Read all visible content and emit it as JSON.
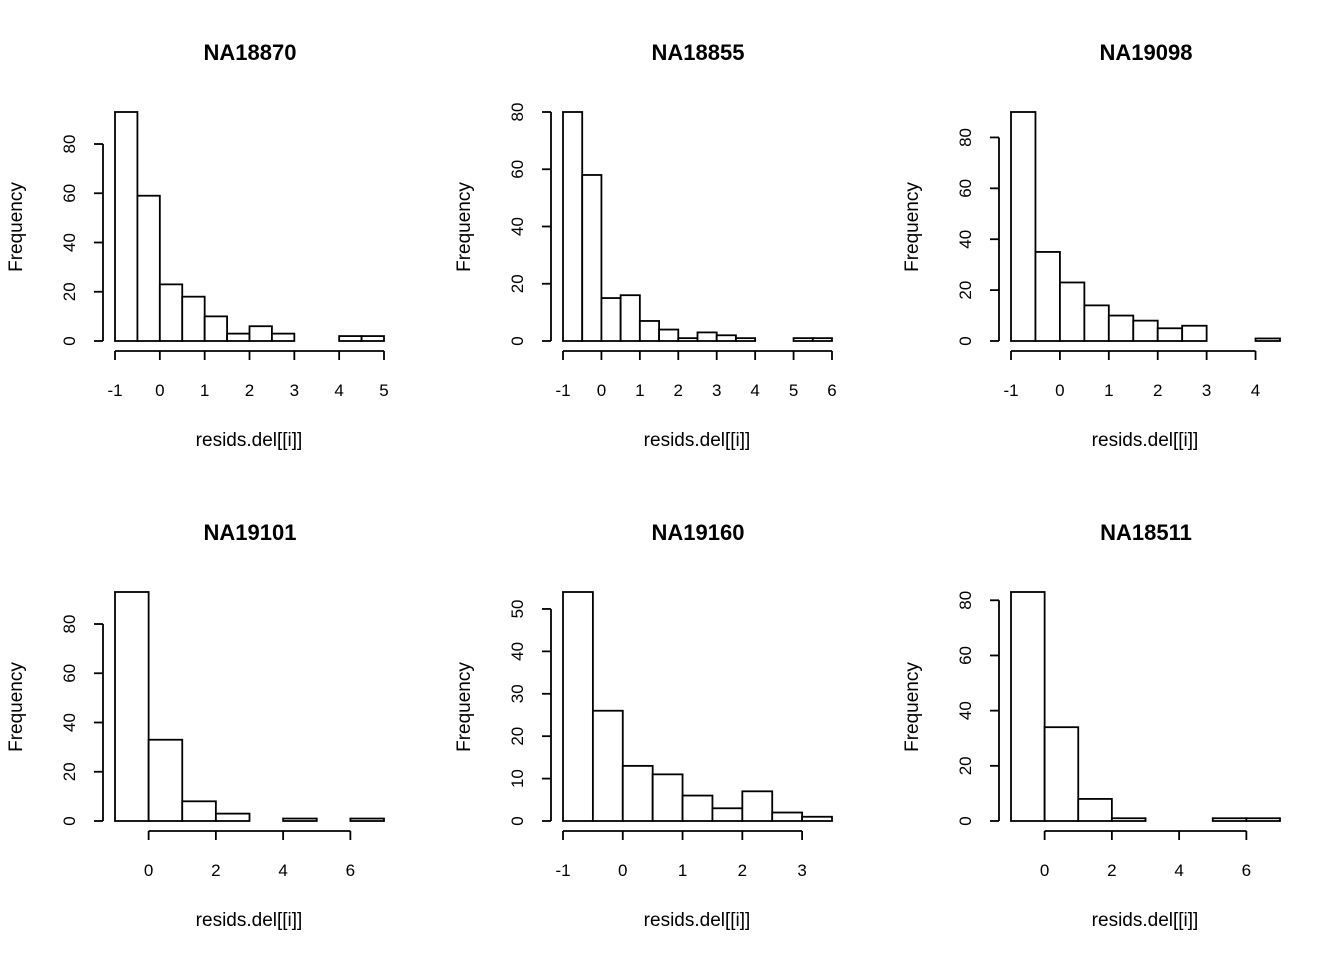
{
  "chart_data": [
    {
      "type": "bar",
      "title": "NA18870",
      "xlabel": "resids.del[[i]]",
      "ylabel": "Frequency",
      "bin_edges": [
        -1,
        -0.5,
        0,
        0.5,
        1,
        1.5,
        2,
        2.5,
        3,
        3.5,
        4,
        4.5,
        5
      ],
      "values": [
        93,
        59,
        23,
        18,
        10,
        3,
        6,
        3,
        0,
        0,
        2,
        2
      ],
      "xticks": [
        -1,
        0,
        1,
        2,
        3,
        4,
        5
      ],
      "xtick_labels": [
        "-1",
        "0",
        "1",
        "2",
        "3",
        "4",
        "5"
      ],
      "yticks": [
        0,
        20,
        40,
        60,
        80
      ],
      "ytick_labels": [
        "0",
        "20",
        "40",
        "60",
        "80"
      ],
      "ymax": 93
    },
    {
      "type": "bar",
      "title": "NA18855",
      "xlabel": "resids.del[[i]]",
      "ylabel": "Frequency",
      "bin_edges": [
        -1,
        -0.5,
        0,
        0.5,
        1,
        1.5,
        2,
        2.5,
        3,
        3.5,
        4,
        4.5,
        5,
        5.5,
        6
      ],
      "values": [
        80,
        58,
        15,
        16,
        7,
        4,
        1,
        3,
        2,
        1,
        0,
        0,
        1,
        1
      ],
      "xticks": [
        -1,
        0,
        1,
        2,
        3,
        4,
        5,
        6
      ],
      "xtick_labels": [
        "-1",
        "0",
        "1",
        "2",
        "3",
        "4",
        "5",
        "6"
      ],
      "yticks": [
        0,
        20,
        40,
        60,
        80
      ],
      "ytick_labels": [
        "0",
        "20",
        "40",
        "60",
        "80"
      ],
      "ymax": 80
    },
    {
      "type": "bar",
      "title": "NA19098",
      "xlabel": "resids.del[[i]]",
      "ylabel": "Frequency",
      "bin_edges": [
        -1,
        -0.5,
        0,
        0.5,
        1,
        1.5,
        2,
        2.5,
        3,
        3.5,
        4,
        4.5
      ],
      "values": [
        90,
        35,
        23,
        14,
        10,
        8,
        5,
        6,
        0,
        0,
        1
      ],
      "xticks": [
        -1,
        0,
        1,
        2,
        3,
        4
      ],
      "xtick_labels": [
        "-1",
        "0",
        "1",
        "2",
        "3",
        "4"
      ],
      "yticks": [
        0,
        20,
        40,
        60,
        80
      ],
      "ytick_labels": [
        "0",
        "20",
        "40",
        "60",
        "80"
      ],
      "ymax": 90
    },
    {
      "type": "bar",
      "title": "NA19101",
      "xlabel": "resids.del[[i]]",
      "ylabel": "Frequency",
      "bin_edges": [
        -1,
        0,
        1,
        2,
        3,
        4,
        5,
        6,
        7
      ],
      "values": [
        93,
        33,
        8,
        3,
        0,
        1,
        0,
        1
      ],
      "xticks": [
        0,
        2,
        4,
        6
      ],
      "xtick_labels": [
        "0",
        "2",
        "4",
        "6"
      ],
      "yticks": [
        0,
        20,
        40,
        60,
        80
      ],
      "ytick_labels": [
        "0",
        "20",
        "40",
        "60",
        "80"
      ],
      "ymax": 93
    },
    {
      "type": "bar",
      "title": "NA19160",
      "xlabel": "resids.del[[i]]",
      "ylabel": "Frequency",
      "bin_edges": [
        -1,
        -0.5,
        0,
        0.5,
        1,
        1.5,
        2,
        2.5,
        3,
        3.5
      ],
      "values": [
        54,
        26,
        13,
        11,
        6,
        3,
        7,
        2,
        1
      ],
      "xticks": [
        -1,
        0,
        1,
        2,
        3
      ],
      "xtick_labels": [
        "-1",
        "0",
        "1",
        "2",
        "3"
      ],
      "yticks": [
        0,
        10,
        20,
        30,
        40,
        50
      ],
      "ytick_labels": [
        "0",
        "10",
        "20",
        "30",
        "40",
        "50"
      ],
      "ymax": 54
    },
    {
      "type": "bar",
      "title": "NA18511",
      "xlabel": "resids.del[[i]]",
      "ylabel": "Frequency",
      "bin_edges": [
        -1,
        0,
        1,
        2,
        3,
        4,
        5,
        6,
        7
      ],
      "values": [
        83,
        34,
        8,
        1,
        0,
        0,
        1,
        1
      ],
      "xticks": [
        0,
        2,
        4,
        6
      ],
      "xtick_labels": [
        "0",
        "2",
        "4",
        "6"
      ],
      "yticks": [
        0,
        20,
        40,
        60,
        80
      ],
      "ytick_labels": [
        "0",
        "20",
        "40",
        "60",
        "80"
      ],
      "ymax": 83
    }
  ]
}
